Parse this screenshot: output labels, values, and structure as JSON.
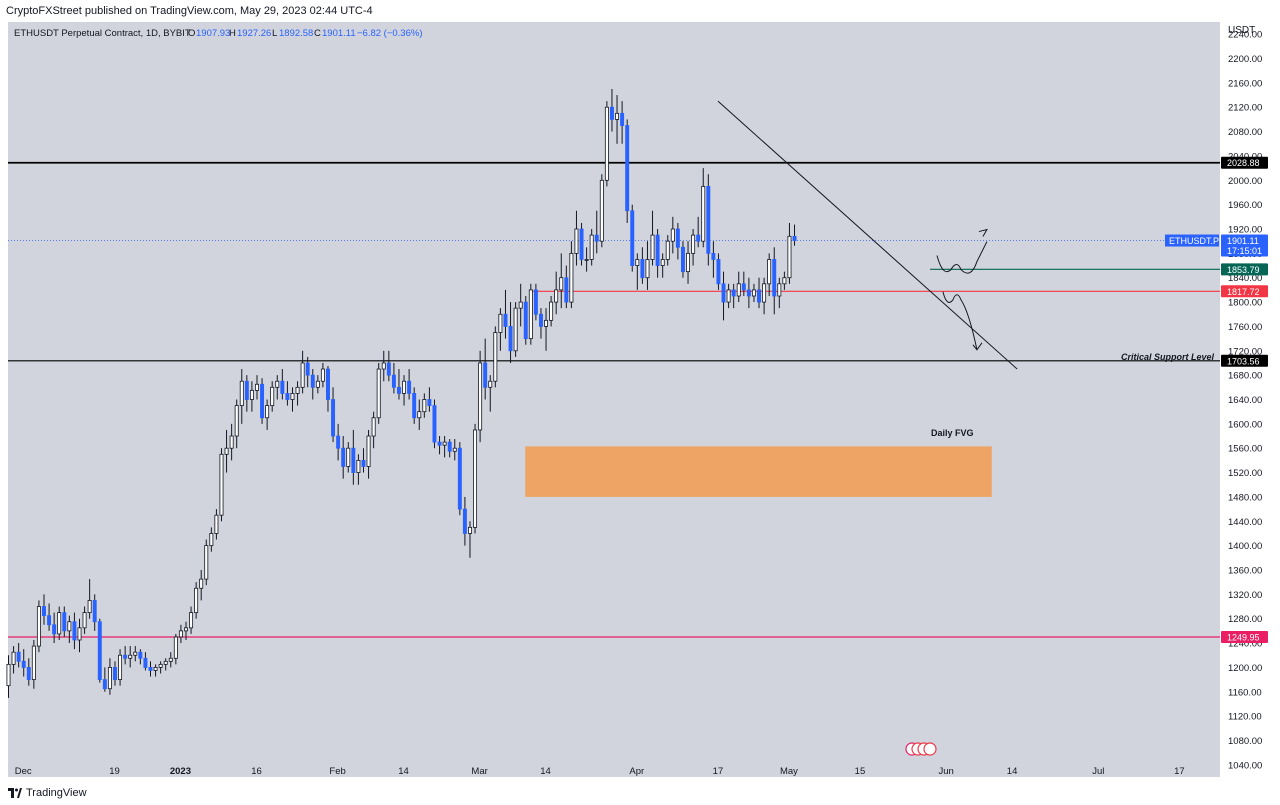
{
  "header": {
    "publisher_line": "CryptoFXStreet published on TradingView.com, May 29, 2023 02:44 UTC-4"
  },
  "legend": {
    "symbol": "ETHUSDT Perpetual Contract, 1D, BYBIT",
    "o_label": "O",
    "o_value": "1907.93",
    "h_label": "H",
    "h_value": "1927.26",
    "l_label": "L",
    "l_value": "1892.58",
    "c_label": "C",
    "c_value": "1901.11",
    "change": "−6.82 (−0.36%)"
  },
  "footer": {
    "brand": "TradingView"
  },
  "colors": {
    "background": "#d1d4dc",
    "up_candle": "#ffffff",
    "down_candle": "#2962ff",
    "wick": "#131722",
    "resistance_line": "#000000",
    "red_line": "#f23645",
    "pink_line": "#e91e63",
    "teal_label": "#056656",
    "fvg_box": "#f0a05a"
  },
  "chart_data": {
    "type": "candlestick",
    "title": "ETHUSDT Perpetual Contract, 1D, BYBIT",
    "y_unit": "USDT",
    "ylim": [
      1020,
      2260
    ],
    "y_ticks": [
      1040,
      1080,
      1120,
      1160,
      1200,
      1240,
      1280,
      1320,
      1360,
      1400,
      1440,
      1480,
      1520,
      1560,
      1600,
      1640,
      1680,
      1720,
      1760,
      1800,
      1840,
      1880,
      1920,
      1960,
      2000,
      2040,
      2080,
      2120,
      2160,
      2200,
      2240
    ],
    "x_start": "2022-11-28",
    "x_end": "2023-07-25",
    "x_ticks": [
      {
        "label": "Dec",
        "date": "2022-12-01"
      },
      {
        "label": "19",
        "date": "2022-12-19"
      },
      {
        "label": "2023",
        "date": "2023-01-01"
      },
      {
        "label": "16",
        "date": "2023-01-16"
      },
      {
        "label": "Feb",
        "date": "2023-02-01"
      },
      {
        "label": "14",
        "date": "2023-02-14"
      },
      {
        "label": "Mar",
        "date": "2023-03-01"
      },
      {
        "label": "14",
        "date": "2023-03-14"
      },
      {
        "label": "Apr",
        "date": "2023-04-01"
      },
      {
        "label": "17",
        "date": "2023-04-17"
      },
      {
        "label": "May",
        "date": "2023-05-01"
      },
      {
        "label": "15",
        "date": "2023-05-15"
      },
      {
        "label": "Jun",
        "date": "2023-06-01"
      },
      {
        "label": "14",
        "date": "2023-06-14"
      },
      {
        "label": "Jul",
        "date": "2023-07-01"
      },
      {
        "label": "17",
        "date": "2023-07-17"
      }
    ],
    "candles_start": "2022-11-28",
    "candles": [
      [
        1170,
        1220,
        1150,
        1205
      ],
      [
        1205,
        1235,
        1190,
        1225
      ],
      [
        1225,
        1240,
        1200,
        1210
      ],
      [
        1210,
        1230,
        1185,
        1200
      ],
      [
        1200,
        1215,
        1170,
        1180
      ],
      [
        1180,
        1245,
        1165,
        1235
      ],
      [
        1235,
        1310,
        1225,
        1300
      ],
      [
        1300,
        1320,
        1270,
        1285
      ],
      [
        1285,
        1305,
        1260,
        1270
      ],
      [
        1270,
        1290,
        1240,
        1255
      ],
      [
        1255,
        1300,
        1245,
        1290
      ],
      [
        1290,
        1300,
        1250,
        1260
      ],
      [
        1260,
        1285,
        1240,
        1275
      ],
      [
        1275,
        1290,
        1230,
        1245
      ],
      [
        1245,
        1280,
        1225,
        1265
      ],
      [
        1265,
        1300,
        1255,
        1290
      ],
      [
        1290,
        1345,
        1280,
        1310
      ],
      [
        1310,
        1320,
        1260,
        1275
      ],
      [
        1275,
        1280,
        1175,
        1180
      ],
      [
        1180,
        1200,
        1160,
        1165
      ],
      [
        1165,
        1215,
        1155,
        1200
      ],
      [
        1200,
        1210,
        1170,
        1180
      ],
      [
        1180,
        1230,
        1170,
        1220
      ],
      [
        1220,
        1235,
        1205,
        1215
      ],
      [
        1215,
        1235,
        1200,
        1220
      ],
      [
        1220,
        1235,
        1210,
        1225
      ],
      [
        1225,
        1230,
        1205,
        1215
      ],
      [
        1215,
        1225,
        1195,
        1200
      ],
      [
        1200,
        1210,
        1185,
        1195
      ],
      [
        1195,
        1205,
        1185,
        1200
      ],
      [
        1200,
        1210,
        1190,
        1205
      ],
      [
        1205,
        1215,
        1195,
        1210
      ],
      [
        1210,
        1225,
        1200,
        1215
      ],
      [
        1215,
        1255,
        1205,
        1250
      ],
      [
        1250,
        1270,
        1240,
        1260
      ],
      [
        1260,
        1275,
        1245,
        1265
      ],
      [
        1265,
        1300,
        1255,
        1290
      ],
      [
        1290,
        1340,
        1280,
        1330
      ],
      [
        1330,
        1360,
        1310,
        1345
      ],
      [
        1345,
        1410,
        1335,
        1400
      ],
      [
        1400,
        1430,
        1390,
        1420
      ],
      [
        1420,
        1460,
        1410,
        1450
      ],
      [
        1450,
        1560,
        1440,
        1550
      ],
      [
        1550,
        1590,
        1520,
        1560
      ],
      [
        1560,
        1600,
        1540,
        1580
      ],
      [
        1580,
        1640,
        1560,
        1630
      ],
      [
        1630,
        1690,
        1600,
        1670
      ],
      [
        1670,
        1680,
        1620,
        1640
      ],
      [
        1640,
        1670,
        1620,
        1655
      ],
      [
        1655,
        1680,
        1640,
        1665
      ],
      [
        1665,
        1675,
        1600,
        1610
      ],
      [
        1610,
        1640,
        1590,
        1630
      ],
      [
        1630,
        1670,
        1620,
        1660
      ],
      [
        1660,
        1680,
        1640,
        1670
      ],
      [
        1670,
        1690,
        1640,
        1650
      ],
      [
        1650,
        1670,
        1630,
        1640
      ],
      [
        1640,
        1660,
        1620,
        1650
      ],
      [
        1650,
        1670,
        1630,
        1660
      ],
      [
        1660,
        1720,
        1650,
        1700
      ],
      [
        1700,
        1710,
        1660,
        1680
      ],
      [
        1680,
        1690,
        1640,
        1660
      ],
      [
        1660,
        1680,
        1650,
        1670
      ],
      [
        1670,
        1700,
        1660,
        1690
      ],
      [
        1690,
        1695,
        1620,
        1640
      ],
      [
        1640,
        1660,
        1570,
        1580
      ],
      [
        1580,
        1600,
        1540,
        1560
      ],
      [
        1560,
        1580,
        1510,
        1530
      ],
      [
        1530,
        1570,
        1520,
        1560
      ],
      [
        1560,
        1590,
        1500,
        1520
      ],
      [
        1520,
        1550,
        1500,
        1540
      ],
      [
        1540,
        1560,
        1520,
        1530
      ],
      [
        1530,
        1590,
        1510,
        1580
      ],
      [
        1580,
        1620,
        1560,
        1610
      ],
      [
        1610,
        1700,
        1600,
        1690
      ],
      [
        1690,
        1720,
        1670,
        1700
      ],
      [
        1700,
        1720,
        1670,
        1680
      ],
      [
        1680,
        1700,
        1650,
        1660
      ],
      [
        1660,
        1690,
        1640,
        1650
      ],
      [
        1650,
        1680,
        1630,
        1670
      ],
      [
        1670,
        1690,
        1640,
        1650
      ],
      [
        1650,
        1660,
        1600,
        1610
      ],
      [
        1610,
        1640,
        1590,
        1620
      ],
      [
        1620,
        1650,
        1610,
        1640
      ],
      [
        1640,
        1660,
        1620,
        1630
      ],
      [
        1630,
        1640,
        1560,
        1570
      ],
      [
        1570,
        1580,
        1550,
        1565
      ],
      [
        1565,
        1580,
        1545,
        1570
      ],
      [
        1570,
        1575,
        1545,
        1555
      ],
      [
        1555,
        1575,
        1540,
        1560
      ],
      [
        1560,
        1570,
        1450,
        1460
      ],
      [
        1460,
        1480,
        1400,
        1420
      ],
      [
        1420,
        1440,
        1380,
        1430
      ],
      [
        1430,
        1600,
        1420,
        1590
      ],
      [
        1590,
        1720,
        1570,
        1700
      ],
      [
        1700,
        1740,
        1640,
        1660
      ],
      [
        1660,
        1680,
        1620,
        1670
      ],
      [
        1670,
        1760,
        1660,
        1750
      ],
      [
        1750,
        1790,
        1720,
        1780
      ],
      [
        1780,
        1820,
        1740,
        1760
      ],
      [
        1760,
        1800,
        1700,
        1720
      ],
      [
        1720,
        1800,
        1710,
        1790
      ],
      [
        1790,
        1830,
        1760,
        1800
      ],
      [
        1800,
        1810,
        1730,
        1740
      ],
      [
        1740,
        1830,
        1730,
        1820
      ],
      [
        1820,
        1830,
        1770,
        1780
      ],
      [
        1780,
        1790,
        1740,
        1760
      ],
      [
        1760,
        1790,
        1720,
        1770
      ],
      [
        1770,
        1810,
        1760,
        1800
      ],
      [
        1800,
        1850,
        1780,
        1820
      ],
      [
        1820,
        1880,
        1790,
        1840
      ],
      [
        1840,
        1860,
        1790,
        1800
      ],
      [
        1800,
        1900,
        1790,
        1880
      ],
      [
        1880,
        1950,
        1860,
        1920
      ],
      [
        1920,
        1930,
        1860,
        1870
      ],
      [
        1870,
        1890,
        1850,
        1870
      ],
      [
        1870,
        1920,
        1860,
        1910
      ],
      [
        1910,
        1950,
        1880,
        1900
      ],
      [
        1900,
        2010,
        1890,
        2000
      ],
      [
        2000,
        2130,
        1990,
        2120
      ],
      [
        2120,
        2150,
        2080,
        2100
      ],
      [
        2100,
        2140,
        2060,
        2110
      ],
      [
        2110,
        2130,
        2060,
        2090
      ],
      [
        2090,
        2100,
        1930,
        1950
      ],
      [
        1950,
        1960,
        1850,
        1860
      ],
      [
        1860,
        1880,
        1820,
        1870
      ],
      [
        1870,
        1890,
        1830,
        1840
      ],
      [
        1840,
        1900,
        1820,
        1870
      ],
      [
        1870,
        1950,
        1860,
        1910
      ],
      [
        1910,
        1920,
        1840,
        1860
      ],
      [
        1860,
        1880,
        1840,
        1870
      ],
      [
        1870,
        1910,
        1860,
        1900
      ],
      [
        1900,
        1940,
        1880,
        1920
      ],
      [
        1920,
        1930,
        1870,
        1890
      ],
      [
        1890,
        1900,
        1840,
        1850
      ],
      [
        1850,
        1900,
        1830,
        1880
      ],
      [
        1880,
        1920,
        1860,
        1910
      ],
      [
        1910,
        1940,
        1890,
        1900
      ],
      [
        1900,
        2020,
        1890,
        1990
      ],
      [
        1990,
        2010,
        1860,
        1880
      ],
      [
        1880,
        1900,
        1840,
        1870
      ],
      [
        1870,
        1880,
        1820,
        1830
      ],
      [
        1830,
        1850,
        1770,
        1800
      ],
      [
        1800,
        1830,
        1790,
        1820
      ],
      [
        1820,
        1830,
        1790,
        1810
      ],
      [
        1810,
        1850,
        1800,
        1830
      ],
      [
        1830,
        1850,
        1810,
        1820
      ],
      [
        1820,
        1840,
        1790,
        1810
      ],
      [
        1810,
        1830,
        1800,
        1820
      ],
      [
        1820,
        1840,
        1790,
        1800
      ],
      [
        1800,
        1840,
        1780,
        1830
      ],
      [
        1830,
        1880,
        1810,
        1870
      ],
      [
        1870,
        1890,
        1780,
        1810
      ],
      [
        1810,
        1840,
        1790,
        1830
      ],
      [
        1830,
        1850,
        1820,
        1840
      ],
      [
        1840,
        1930,
        1830,
        1908
      ],
      [
        1907.93,
        1927.26,
        1892.58,
        1901.11
      ]
    ],
    "horizontal_levels": [
      {
        "price": 2028.88,
        "label": "2028.88",
        "color": "#000000"
      },
      {
        "price": 1901.11,
        "label": "1901.11",
        "sublabel": "17:15:01",
        "tag": "ETHUSDT.P",
        "color": "#2962ff"
      },
      {
        "price": 1853.79,
        "label": "1853.79",
        "color": "#056656"
      },
      {
        "price": 1817.72,
        "label": "1817.72",
        "color": "#f23645"
      },
      {
        "price": 1703.56,
        "label": "1703.56",
        "color": "#000000",
        "annotation": "Critical Support Level"
      },
      {
        "price": 1249.95,
        "label": "1249.95",
        "color": "#e91e63"
      }
    ],
    "trendline": {
      "from": {
        "date": "2023-04-17",
        "price": 2130
      },
      "to": {
        "date": "2023-06-15",
        "price": 1690
      }
    },
    "fvg_zone": {
      "label": "Daily FVG",
      "price_top": 1563,
      "price_bottom": 1480,
      "date_from": "2023-03-10",
      "date_to": "2023-06-10"
    },
    "axis_header": "USDT"
  }
}
